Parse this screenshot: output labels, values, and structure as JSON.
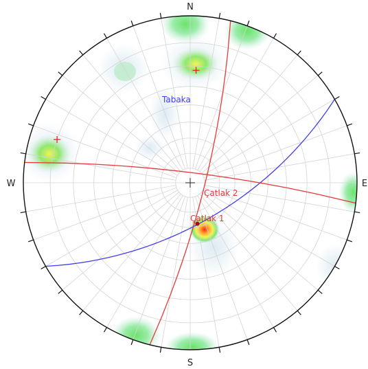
{
  "compass": {
    "north": "N",
    "south": "S",
    "west": "W",
    "east": "E"
  },
  "planes": [
    {
      "label": "Tabaka",
      "color": "#3d3df0",
      "strike_deg": 60,
      "dip_deg": 63
    },
    {
      "label": "Çatlak 1",
      "color": "#e8373a",
      "strike_deg": 14,
      "dip_deg": 80
    },
    {
      "label": "Çatlak 2",
      "color": "#e8373a",
      "strike_deg": 277,
      "dip_deg": 83
    }
  ],
  "pole_concentrations": [
    {
      "trend_deg": 3,
      "plunge_deg": 22,
      "level": "high"
    },
    {
      "trend_deg": 288,
      "plunge_deg": 10,
      "level": "high"
    },
    {
      "trend_deg": 170,
      "plunge_deg": 62,
      "level": "max"
    }
  ],
  "colors": {
    "contour_low": "#dbe9f2",
    "contour_mid": "#bfeccd",
    "contour_green": "#6ce36c",
    "contour_yellow": "#f2f25a",
    "contour_orange": "#ffa92a",
    "contour_red": "#ff2a1a",
    "grid": "#d4d4d4",
    "primitive": "#111111"
  }
}
